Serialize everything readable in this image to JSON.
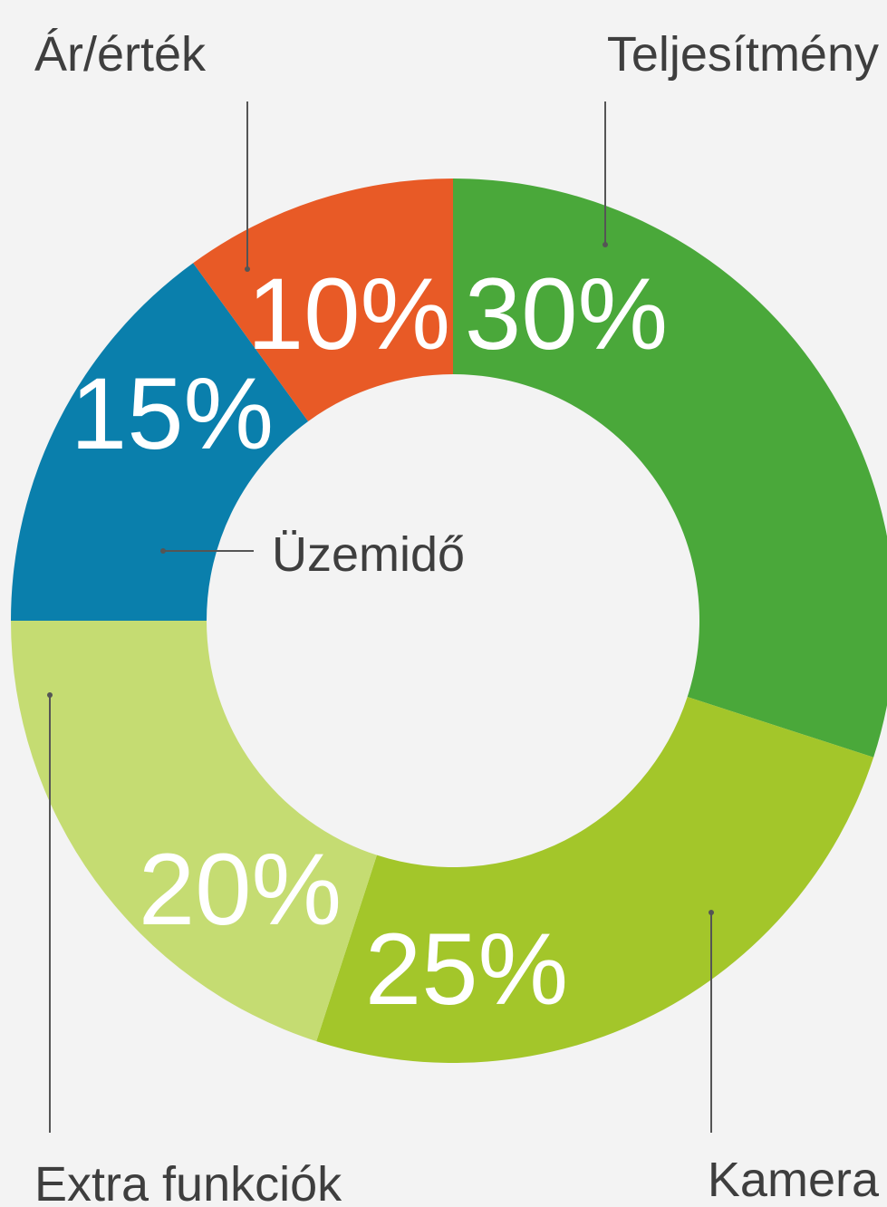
{
  "chart_data": {
    "type": "donut",
    "categories": [
      "Teljesítmény",
      "Kamera",
      "Extra funkciók",
      "Üzemidő",
      "Ár/érték"
    ],
    "values": [
      30,
      25,
      20,
      15,
      10
    ],
    "value_labels": [
      "30%",
      "25%",
      "20%",
      "15%",
      "10%"
    ],
    "colors": [
      "#4aa83a",
      "#a3c62a",
      "#c5dc72",
      "#0a7fac",
      "#e85a26"
    ]
  }
}
